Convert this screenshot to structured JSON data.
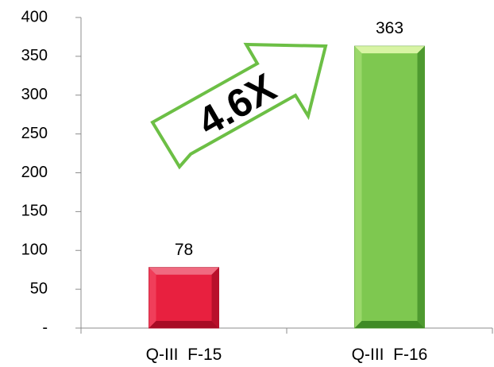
{
  "chart_data": {
    "type": "bar",
    "categories": [
      "Q-III  F-15",
      "Q-III  F-16"
    ],
    "values": [
      78,
      363
    ],
    "data_labels": [
      "78",
      "363"
    ],
    "ylim": [
      0,
      400
    ],
    "y_ticks": [
      0,
      50,
      100,
      150,
      200,
      250,
      300,
      350,
      400
    ],
    "y_tick_labels": [
      "-",
      "50",
      "100",
      "150",
      "200",
      "250",
      "300",
      "350",
      "400"
    ],
    "grid": false,
    "legend": "none",
    "bar_colors": [
      "#e8203f",
      "#7ec850"
    ],
    "annotation": {
      "text": "4.6X",
      "shape": "arrow-up-right",
      "outline_color": "#6cbf45"
    }
  }
}
